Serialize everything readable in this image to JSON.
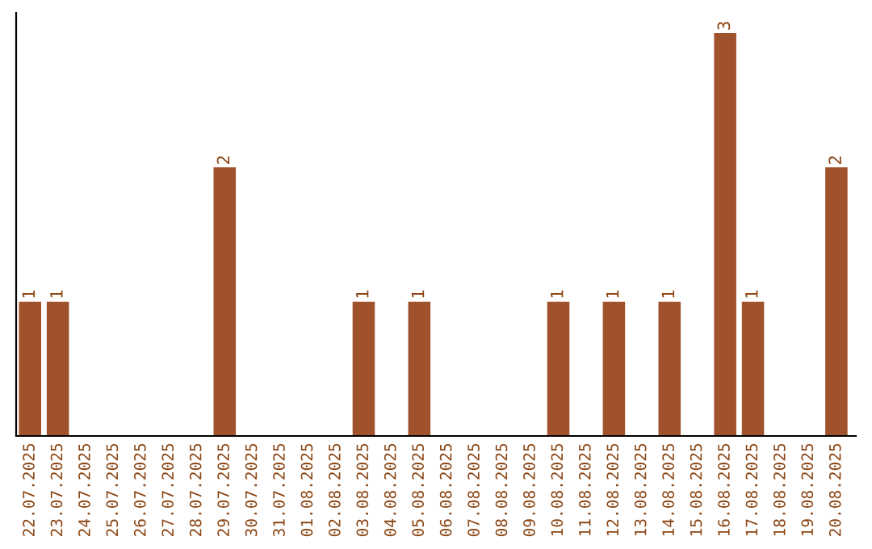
{
  "chart_data": {
    "type": "bar",
    "categories": [
      "22.07.2025",
      "23.07.2025",
      "24.07.2025",
      "25.07.2025",
      "26.07.2025",
      "27.07.2025",
      "28.07.2025",
      "29.07.2025",
      "30.07.2025",
      "31.07.2025",
      "01.08.2025",
      "02.08.2025",
      "03.08.2025",
      "04.08.2025",
      "05.08.2025",
      "06.08.2025",
      "07.08.2025",
      "08.08.2025",
      "09.08.2025",
      "10.08.2025",
      "11.08.2025",
      "12.08.2025",
      "13.08.2025",
      "14.08.2025",
      "15.08.2025",
      "16.08.2025",
      "17.08.2025",
      "18.08.2025",
      "19.08.2025",
      "20.08.2025"
    ],
    "values": [
      1,
      1,
      0,
      0,
      0,
      0,
      0,
      2,
      0,
      0,
      0,
      0,
      1,
      0,
      1,
      0,
      0,
      0,
      0,
      1,
      0,
      1,
      0,
      1,
      0,
      3,
      1,
      0,
      0,
      2
    ],
    "value_labels": [
      "1",
      "1",
      null,
      null,
      null,
      null,
      null,
      "2",
      null,
      null,
      null,
      null,
      "1",
      null,
      "1",
      null,
      null,
      null,
      null,
      "1",
      null,
      "1",
      null,
      "1",
      null,
      "3",
      "1",
      null,
      null,
      "2"
    ],
    "color": "#a0522d",
    "tick_labels": "x",
    "grid": false
  }
}
